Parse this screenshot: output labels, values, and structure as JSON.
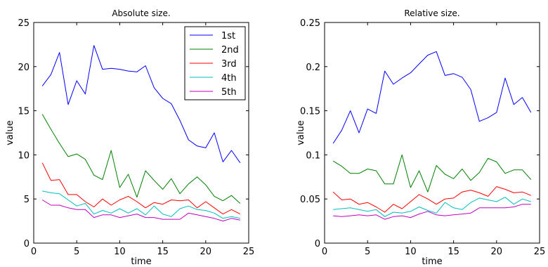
{
  "chart_data": [
    {
      "type": "line",
      "title": "Absolute size.",
      "xlabel": "time",
      "ylabel": "value",
      "xlim": [
        0,
        25
      ],
      "ylim": [
        0,
        25
      ],
      "xticks": [
        "0",
        "5",
        "10",
        "15",
        "20",
        "25"
      ],
      "yticks": [
        "0",
        "5",
        "10",
        "15",
        "20",
        "25"
      ],
      "grid": false,
      "legend": "top-right",
      "x": [
        1,
        2,
        3,
        4,
        5,
        6,
        7,
        8,
        9,
        10,
        11,
        12,
        13,
        14,
        15,
        16,
        17,
        18,
        19,
        20,
        21,
        22,
        23,
        24
      ],
      "series": [
        {
          "name": "1st",
          "color": "#0000ff",
          "values": [
            17.8,
            19.1,
            21.6,
            15.7,
            18.4,
            16.9,
            22.4,
            19.7,
            19.8,
            19.7,
            19.5,
            19.4,
            20.1,
            17.6,
            16.4,
            15.8,
            13.9,
            11.7,
            11.0,
            10.8,
            12.5,
            9.2,
            10.5,
            9.1
          ]
        },
        {
          "name": "2nd",
          "color": "#008000",
          "values": [
            14.6,
            12.9,
            11.3,
            9.8,
            10.1,
            9.5,
            7.7,
            7.2,
            10.5,
            6.3,
            7.8,
            5.2,
            8.2,
            7.1,
            6.1,
            7.3,
            5.6,
            6.7,
            7.5,
            6.6,
            5.3,
            4.8,
            5.4,
            4.5
          ]
        },
        {
          "name": "3rd",
          "color": "#ff0000",
          "values": [
            9.1,
            7.1,
            7.2,
            5.5,
            5.5,
            4.7,
            4.1,
            5.0,
            4.3,
            4.9,
            5.3,
            4.7,
            4.0,
            4.6,
            4.4,
            4.9,
            4.8,
            4.9,
            4.0,
            4.7,
            4.0,
            3.3,
            3.8,
            3.3
          ]
        },
        {
          "name": "4th",
          "color": "#00bfbf",
          "values": [
            5.9,
            5.7,
            5.6,
            4.9,
            4.2,
            4.5,
            3.3,
            3.7,
            3.4,
            3.9,
            3.4,
            3.9,
            3.2,
            4.2,
            3.3,
            3.0,
            3.9,
            4.2,
            3.8,
            3.7,
            3.4,
            2.8,
            3.0,
            2.8
          ]
        },
        {
          "name": "5th",
          "color": "#bf00bf",
          "values": [
            4.9,
            4.3,
            4.3,
            4.0,
            3.8,
            3.8,
            2.9,
            3.2,
            3.2,
            2.9,
            3.1,
            3.3,
            2.9,
            2.9,
            2.7,
            2.7,
            2.7,
            3.4,
            3.2,
            3.0,
            2.8,
            2.5,
            2.8,
            2.6
          ]
        }
      ]
    },
    {
      "type": "line",
      "title": "Relative size.",
      "xlabel": "time",
      "ylabel": "value",
      "xlim": [
        0,
        25
      ],
      "ylim": [
        0,
        0.25
      ],
      "xticks": [
        "0",
        "5",
        "10",
        "15",
        "20",
        "25"
      ],
      "yticks": [
        "0",
        "0.05",
        "0.1",
        "0.15",
        "0.2",
        "0.25"
      ],
      "grid": false,
      "legend": "none",
      "x": [
        1,
        2,
        3,
        4,
        5,
        6,
        7,
        8,
        9,
        10,
        11,
        12,
        13,
        14,
        15,
        16,
        17,
        18,
        19,
        20,
        21,
        22,
        23,
        24
      ],
      "series": [
        {
          "color": "#0000ff",
          "values": [
            0.113,
            0.128,
            0.15,
            0.125,
            0.152,
            0.147,
            0.195,
            0.18,
            0.187,
            0.193,
            0.203,
            0.213,
            0.217,
            0.19,
            0.192,
            0.188,
            0.174,
            0.138,
            0.142,
            0.148,
            0.187,
            0.157,
            0.165,
            0.148
          ]
        },
        {
          "color": "#008000",
          "values": [
            0.093,
            0.087,
            0.079,
            0.079,
            0.084,
            0.082,
            0.067,
            0.067,
            0.1,
            0.063,
            0.082,
            0.058,
            0.088,
            0.078,
            0.073,
            0.084,
            0.071,
            0.08,
            0.096,
            0.092,
            0.079,
            0.083,
            0.083,
            0.072
          ]
        },
        {
          "color": "#ff0000",
          "values": [
            0.058,
            0.049,
            0.05,
            0.044,
            0.046,
            0.041,
            0.035,
            0.044,
            0.039,
            0.047,
            0.055,
            0.05,
            0.044,
            0.05,
            0.051,
            0.058,
            0.06,
            0.057,
            0.053,
            0.064,
            0.061,
            0.057,
            0.058,
            0.054
          ]
        },
        {
          "color": "#00bfbf",
          "values": [
            0.038,
            0.039,
            0.04,
            0.038,
            0.036,
            0.038,
            0.03,
            0.035,
            0.034,
            0.036,
            0.041,
            0.037,
            0.034,
            0.046,
            0.04,
            0.038,
            0.046,
            0.051,
            0.049,
            0.047,
            0.052,
            0.044,
            0.05,
            0.047
          ]
        },
        {
          "color": "#bf00bf",
          "values": [
            0.031,
            0.03,
            0.031,
            0.032,
            0.031,
            0.032,
            0.027,
            0.03,
            0.031,
            0.029,
            0.033,
            0.036,
            0.032,
            0.031,
            0.032,
            0.033,
            0.034,
            0.04,
            0.04,
            0.04,
            0.04,
            0.041,
            0.044,
            0.044
          ]
        }
      ]
    }
  ]
}
